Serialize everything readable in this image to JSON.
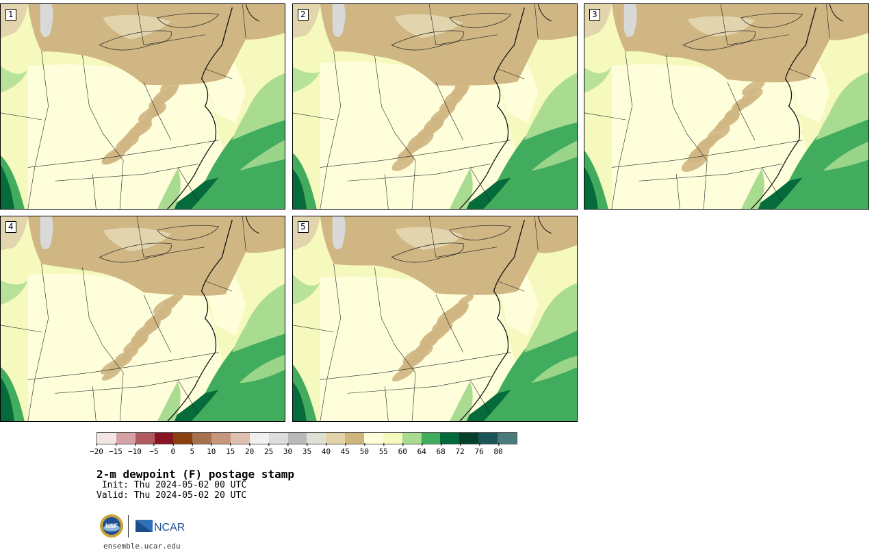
{
  "panels": [
    {
      "label": "1"
    },
    {
      "label": "2"
    },
    {
      "label": "3"
    },
    {
      "label": "4"
    },
    {
      "label": "5"
    }
  ],
  "colorbar": {
    "colors": [
      "#f4e5e5",
      "#d4a1a5",
      "#b05a60",
      "#8a1522",
      "#8a3f10",
      "#a77150",
      "#c6977c",
      "#dfbfaf",
      "#f0f0f0",
      "#dcdcdc",
      "#b9b9b9",
      "#dfe0d4",
      "#e3d3a9",
      "#cdb57b",
      "#fefed8",
      "#f6f9bd",
      "#a9dc91",
      "#42ac5e",
      "#03693a",
      "#07402a",
      "#1b5558",
      "#4a7a7b"
    ],
    "ticks": [
      "−20",
      "−15",
      "−10",
      "−5",
      "0",
      "5",
      "10",
      "15",
      "20",
      "25",
      "30",
      "35",
      "40",
      "45",
      "50",
      "55",
      "60",
      "64",
      "68",
      "72",
      "76",
      "80"
    ]
  },
  "text": {
    "title": "2-m dewpoint (F) postage stamp",
    "init": " Init: Thu 2024-05-02 00 UTC",
    "valid": "Valid: Thu 2024-05-02 20 UTC",
    "site": "ensemble.ucar.edu",
    "ncar": "NCAR",
    "nsf": "NSF"
  },
  "map_colors": {
    "dry": "#cfb682",
    "dry_light": "#e2d4ad",
    "lake": "#d9d9d9",
    "mid": "#fefedb",
    "mid2": "#f6f9bd",
    "moist": "#a9dc91",
    "wet": "#42ac5e",
    "very_wet": "#056b3a"
  }
}
